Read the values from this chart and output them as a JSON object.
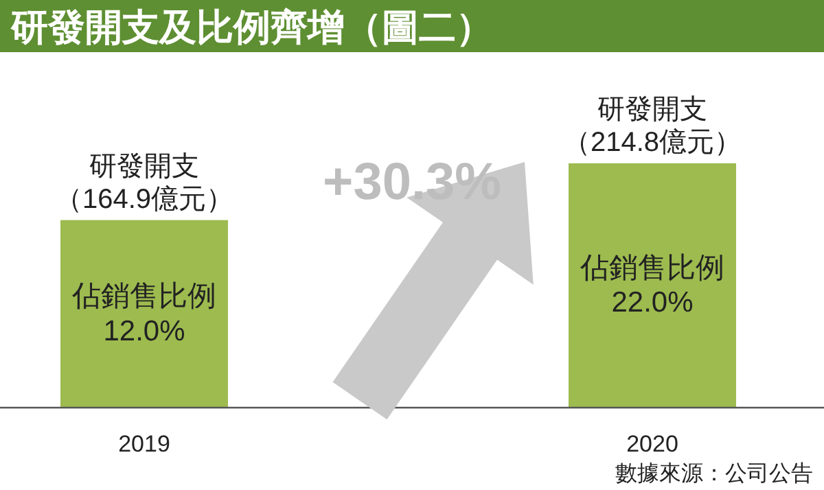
{
  "chart_data": {
    "type": "bar",
    "title": "研發開支及比例齊增（圖二）",
    "categories": [
      "2019",
      "2020"
    ],
    "values": [
      164.9,
      214.8
    ],
    "colors": [
      "#9dbb4f",
      "#9dbb4f"
    ],
    "value_labels": [
      "研發開支（164.9億元）",
      "研發開支（214.8億元）"
    ],
    "annotations": [
      "佔銷售比例12.0%",
      "佔銷售比例22.0%",
      "+30.3%",
      "數據來源：公司公告"
    ]
  }
}
